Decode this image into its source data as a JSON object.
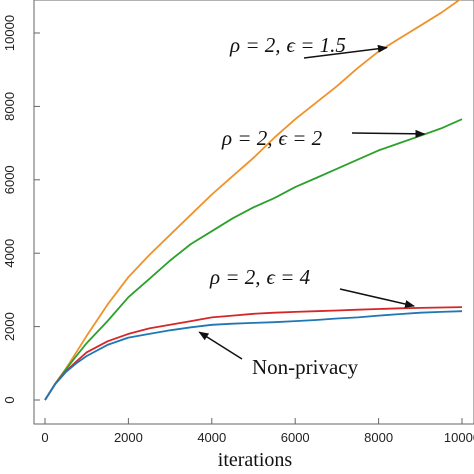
{
  "chart_data": {
    "type": "line",
    "title": "",
    "xlabel": "iterations",
    "ylabel": "",
    "xlim": [
      0,
      10000
    ],
    "ylim": [
      0,
      11000
    ],
    "xticks": [
      0,
      2000,
      4000,
      6000,
      8000,
      10000
    ],
    "xtick_labels": [
      "0",
      "2000",
      "4000",
      "6000",
      "8000",
      "10000"
    ],
    "yticks": [
      0,
      2000,
      4000,
      6000,
      8000,
      10000
    ],
    "ytick_labels": [
      "0",
      "2000",
      "4000",
      "6000",
      "8000",
      "10000"
    ],
    "grid": false,
    "series": [
      {
        "color": "#f0922b",
        "x": [
          0,
          250,
          500,
          750,
          1000,
          1500,
          2000,
          2500,
          3000,
          3500,
          4000,
          4500,
          5000,
          5500,
          6000,
          6500,
          7000,
          7500,
          8000,
          8500,
          9000,
          9500,
          10000
        ],
        "values": [
          0,
          450,
          850,
          1300,
          1750,
          2600,
          3350,
          3950,
          4500,
          5050,
          5600,
          6100,
          6600,
          7150,
          7650,
          8100,
          8550,
          9050,
          9500,
          9850,
          10200,
          10550,
          10950
        ]
      },
      {
        "color": "#2ca02c",
        "x": [
          0,
          250,
          500,
          750,
          1000,
          1500,
          2000,
          2500,
          3000,
          3500,
          4000,
          4500,
          5000,
          5500,
          6000,
          6500,
          7000,
          7500,
          8000,
          8500,
          9000,
          9500,
          10000
        ],
        "values": [
          0,
          450,
          830,
          1200,
          1550,
          2150,
          2800,
          3300,
          3800,
          4250,
          4600,
          4950,
          5250,
          5500,
          5800,
          6050,
          6300,
          6550,
          6800,
          7000,
          7200,
          7400,
          7650
        ]
      },
      {
        "color": "#d62728",
        "x": [
          0,
          250,
          500,
          750,
          1000,
          1500,
          2000,
          2500,
          3000,
          3500,
          4000,
          4500,
          5000,
          5500,
          6000,
          6500,
          7000,
          7500,
          8000,
          8500,
          9000,
          9500,
          10000
        ],
        "values": [
          0,
          450,
          780,
          1050,
          1300,
          1600,
          1800,
          1950,
          2050,
          2150,
          2250,
          2300,
          2350,
          2380,
          2400,
          2420,
          2440,
          2460,
          2480,
          2500,
          2510,
          2520,
          2530
        ]
      },
      {
        "color": "#1f77b4",
        "x": [
          0,
          250,
          500,
          750,
          1000,
          1500,
          2000,
          2500,
          3000,
          3500,
          4000,
          4500,
          5000,
          5500,
          6000,
          6500,
          7000,
          7500,
          8000,
          8500,
          9000,
          9500,
          10000
        ],
        "values": [
          0,
          440,
          760,
          1000,
          1200,
          1500,
          1700,
          1800,
          1900,
          1980,
          2050,
          2080,
          2100,
          2120,
          2150,
          2180,
          2220,
          2250,
          2300,
          2340,
          2380,
          2400,
          2420
        ]
      }
    ],
    "annotations": [
      {
        "label_rho": "ρ = 2,",
        "label_eps": "ϵ = 1.5",
        "target": [
          8200,
          9600
        ]
      },
      {
        "label_rho": "ρ = 2,",
        "label_eps": "ϵ = 2",
        "target": [
          9100,
          7250
        ]
      },
      {
        "label_rho": "ρ = 2,",
        "label_eps": "ϵ = 4",
        "target": [
          8850,
          2560
        ]
      },
      {
        "label": "Non-privacy",
        "target": [
          3700,
          1850
        ]
      }
    ]
  }
}
